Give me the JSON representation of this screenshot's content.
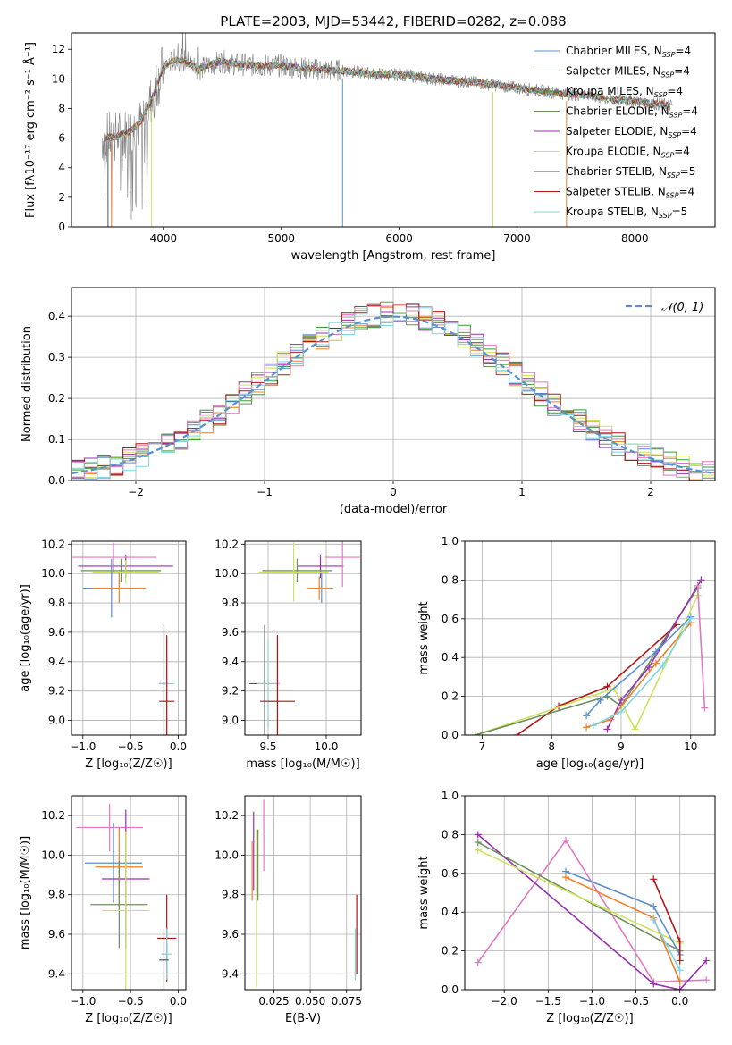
{
  "figure": {
    "title": "PLATE=2003, MJD=53442, FIBERID=0282, z=0.088"
  },
  "chart_data": [
    {
      "id": "spectrum",
      "type": "line",
      "title": "PLATE=2003, MJD=53442, FIBERID=0282, z=0.088",
      "xlabel": "wavelength [Angstrom, rest frame]",
      "ylabel": "Flux [fλ10⁻¹⁷ erg cm⁻² s⁻¹ Å⁻¹]",
      "xlim": [
        3220,
        8680
      ],
      "ylim": [
        0,
        13.1
      ],
      "xticks": [
        4000,
        5000,
        6000,
        7000,
        8000
      ],
      "yticks": [
        0,
        2,
        4,
        6,
        8,
        10,
        12
      ],
      "legend_position": "top-right",
      "data": {
        "wave": [
          3500,
          3600,
          3700,
          3800,
          3900,
          4000,
          4100,
          4200,
          4300,
          4400,
          4500,
          4600,
          4800,
          5000,
          5200,
          5400,
          5600,
          5800,
          6000,
          6200,
          6400,
          6600,
          6800,
          7000,
          7200,
          7400,
          7600,
          7800,
          8000,
          8200,
          8300
        ],
        "flux": [
          6.0,
          6.1,
          6.4,
          7.0,
          8.6,
          10.8,
          11.3,
          11.2,
          10.6,
          11.0,
          11.2,
          11.0,
          10.9,
          10.9,
          10.7,
          10.6,
          10.5,
          10.3,
          10.3,
          10.1,
          9.9,
          9.8,
          9.6,
          9.4,
          9.2,
          9.0,
          8.9,
          8.6,
          8.5,
          8.3,
          8.2
        ]
      },
      "series": [
        {
          "name": "Chabrier MILES, N_SSP=4",
          "color": "#5a8fcf"
        },
        {
          "name": "Salpeter MILES, N_SSP=4",
          "color": "#f07f2a"
        },
        {
          "name": "Kroupa MILES, N_SSP=4",
          "color": "#3a9a3a"
        },
        {
          "name": "Chabrier ELODIE, N_SSP=4",
          "color": "#6b8f5e"
        },
        {
          "name": "Salpeter ELODIE, N_SSP=4",
          "color": "#9a2fb0"
        },
        {
          "name": "Kroupa ELODIE, N_SSP=4",
          "color": "#cde35a"
        },
        {
          "name": "Chabrier STELIB, N_SSP=5",
          "color": "#555555"
        },
        {
          "name": "Salpeter STELIB, N_SSP=4",
          "color": "#b01515"
        },
        {
          "name": "Kroupa STELIB, N_SSP=5",
          "color": "#7fd4e0"
        }
      ]
    },
    {
      "id": "residuals",
      "type": "line",
      "xlabel": "(data-model)/error",
      "ylabel": "Normed distribution",
      "xlim": [
        -2.5,
        2.5
      ],
      "ylim": [
        0,
        0.47
      ],
      "xticks": [
        -2,
        -1,
        0,
        1,
        2
      ],
      "yticks": [
        0.0,
        0.1,
        0.2,
        0.3,
        0.4
      ],
      "legend_position": "top-right",
      "legend": [
        "𝒩(0, 1)"
      ],
      "normal_curve": {
        "mean": 0,
        "sigma": 1,
        "color": "#5a8fcf"
      },
      "histogram_bins": [
        -2.4,
        -2.3,
        -2.2,
        -2.1,
        -2.0,
        -1.9,
        -1.8,
        -1.7,
        -1.6,
        -1.5,
        -1.4,
        -1.3,
        -1.2,
        -1.1,
        -1.0,
        -0.9,
        -0.8,
        -0.7,
        -0.6,
        -0.5,
        -0.4,
        -0.3,
        -0.2,
        -0.1,
        0.0,
        0.1,
        0.2,
        0.3,
        0.4,
        0.5,
        0.6,
        0.7,
        0.8,
        0.9,
        1.0,
        1.1,
        1.2,
        1.3,
        1.4,
        1.5,
        1.6,
        1.7,
        1.8,
        1.9,
        2.0,
        2.1,
        2.2,
        2.3,
        2.4
      ]
    },
    {
      "id": "Z-age",
      "type": "scatter",
      "xlabel": "Z [log₁₀(Z/Z☉)]",
      "ylabel": "age  [log₁₀(age/yr)]",
      "xlim": [
        -1.12,
        0.08
      ],
      "ylim": [
        8.9,
        10.22
      ],
      "xticks": [
        -1.0,
        -0.5,
        0.0
      ],
      "yticks": [
        9.0,
        9.2,
        9.4,
        9.6,
        9.8,
        10.0,
        10.2
      ],
      "points": [
        {
          "x": -0.55,
          "y": 10.05,
          "xerr": 0.5,
          "yerr": 0.08,
          "color": "#9a2fb0"
        },
        {
          "x": -0.68,
          "y": 10.11,
          "xerr": 0.45,
          "yerr": 0.1,
          "color": "#e377c2"
        },
        {
          "x": -0.6,
          "y": 10.02,
          "xerr": 0.42,
          "yerr": 0.08,
          "color": "#6b8f5e"
        },
        {
          "x": -0.55,
          "y": 10.01,
          "xerr": 0.35,
          "yerr": 0.08,
          "color": "#cde35a"
        },
        {
          "x": -0.7,
          "y": 9.9,
          "xerr": 0.3,
          "yerr": 0.2,
          "color": "#5a8fcf"
        },
        {
          "x": -0.62,
          "y": 9.9,
          "xerr": 0.28,
          "yerr": 0.1,
          "color": "#f07f2a"
        },
        {
          "x": -0.15,
          "y": 9.25,
          "xerr": 0.05,
          "yerr": 0.4,
          "color": "#555555"
        },
        {
          "x": -0.12,
          "y": 9.25,
          "xerr": 0.08,
          "yerr": 0.3,
          "color": "#7fd4e0"
        },
        {
          "x": -0.12,
          "y": 9.13,
          "xerr": 0.08,
          "yerr": 0.45,
          "color": "#b01515"
        }
      ]
    },
    {
      "id": "mass-age",
      "type": "scatter",
      "xlabel": "mass [log₁₀(M/M☉)]",
      "ylabel": "",
      "xlim": [
        9.3,
        10.3
      ],
      "ylim": [
        8.9,
        10.22
      ],
      "xticks": [
        9.5,
        10.0
      ],
      "yticks": [
        9.0,
        9.2,
        9.4,
        9.6,
        9.8,
        10.0,
        10.2
      ],
      "points": [
        {
          "x": 9.95,
          "y": 10.05,
          "xerr": 0.2,
          "yerr": 0.08,
          "color": "#9a2fb0"
        },
        {
          "x": 10.14,
          "y": 10.11,
          "xerr": 0.15,
          "yerr": 0.2,
          "color": "#e377c2"
        },
        {
          "x": 9.75,
          "y": 10.02,
          "xerr": 0.3,
          "yerr": 0.08,
          "color": "#6b8f5e"
        },
        {
          "x": 9.72,
          "y": 10.01,
          "xerr": 0.3,
          "yerr": 0.2,
          "color": "#cde35a"
        },
        {
          "x": 9.96,
          "y": 9.9,
          "xerr": 0.1,
          "yerr": 0.1,
          "color": "#5a8fcf"
        },
        {
          "x": 9.94,
          "y": 9.9,
          "xerr": 0.1,
          "yerr": 0.08,
          "color": "#f07f2a"
        },
        {
          "x": 9.47,
          "y": 9.25,
          "xerr": 0.13,
          "yerr": 0.4,
          "color": "#555555"
        },
        {
          "x": 9.5,
          "y": 9.25,
          "xerr": 0.1,
          "yerr": 0.3,
          "color": "#7fd4e0"
        },
        {
          "x": 9.58,
          "y": 9.13,
          "xerr": 0.15,
          "yerr": 0.45,
          "color": "#b01515"
        }
      ]
    },
    {
      "id": "age-weight",
      "type": "line",
      "xlabel": "age  [log₁₀(age/yr)]",
      "ylabel": "mass weight",
      "xlim": [
        6.75,
        10.35
      ],
      "ylim": [
        0,
        1.0
      ],
      "xticks": [
        7,
        8,
        9,
        10
      ],
      "yticks": [
        0.0,
        0.2,
        0.4,
        0.6,
        0.8,
        1.0
      ],
      "series": [
        {
          "color": "#b01515",
          "x": [
            7.5,
            8.1,
            8.8,
            9.8
          ],
          "y": [
            0.0,
            0.15,
            0.25,
            0.57
          ]
        },
        {
          "color": "#cde35a",
          "x": [
            6.9,
            8.9,
            9.2,
            10.1
          ],
          "y": [
            0.0,
            0.24,
            0.03,
            0.72
          ]
        },
        {
          "color": "#6b8f5e",
          "x": [
            6.9,
            8.8,
            9.0,
            10.1
          ],
          "y": [
            0.0,
            0.2,
            0.15,
            0.76
          ]
        },
        {
          "color": "#9a2fb0",
          "x": [
            8.8,
            9.0,
            9.4,
            10.15
          ],
          "y": [
            0.03,
            0.18,
            0.35,
            0.8
          ]
        },
        {
          "color": "#5a8fcf",
          "x": [
            8.5,
            8.7,
            9.5,
            10.0
          ],
          "y": [
            0.1,
            0.18,
            0.43,
            0.61
          ]
        },
        {
          "color": "#f07f2a",
          "x": [
            8.5,
            8.85,
            9.5,
            10.0
          ],
          "y": [
            0.04,
            0.08,
            0.37,
            0.58
          ]
        },
        {
          "color": "#e377c2",
          "x": [
            10.1,
            10.2
          ],
          "y": [
            0.77,
            0.14
          ]
        },
        {
          "color": "#7fd4e0",
          "x": [
            8.6,
            9.0,
            9.6,
            10.0
          ],
          "y": [
            0.05,
            0.12,
            0.36,
            0.6
          ]
        }
      ]
    },
    {
      "id": "Z-mass",
      "type": "scatter",
      "xlabel": "Z [log₁₀(Z/Z☉)]",
      "ylabel": "mass [log₁₀(M/M☉)]",
      "xlim": [
        -1.12,
        0.08
      ],
      "ylim": [
        9.32,
        10.3
      ],
      "xticks": [
        -1.0,
        -0.5,
        0.0
      ],
      "yticks": [
        9.4,
        9.6,
        9.8,
        10.0,
        10.2
      ],
      "points": [
        {
          "x": -0.72,
          "y": 10.14,
          "xerr": 0.35,
          "yerr": 0.12,
          "color": "#e377c2"
        },
        {
          "x": -0.55,
          "y": 9.88,
          "xerr": 0.25,
          "yerr": 0.35,
          "color": "#9a2fb0"
        },
        {
          "x": -0.68,
          "y": 9.96,
          "xerr": 0.3,
          "yerr": 0.2,
          "color": "#5a8fcf"
        },
        {
          "x": -0.62,
          "y": 9.94,
          "xerr": 0.25,
          "yerr": 0.2,
          "color": "#f07f2a"
        },
        {
          "x": -0.62,
          "y": 9.75,
          "xerr": 0.3,
          "yerr": 0.22,
          "color": "#6b8f5e"
        },
        {
          "x": -0.55,
          "y": 9.72,
          "xerr": 0.25,
          "yerr": 0.4,
          "color": "#cde35a"
        },
        {
          "x": -0.12,
          "y": 9.58,
          "xerr": 0.1,
          "yerr": 0.22,
          "color": "#b01515"
        },
        {
          "x": -0.12,
          "y": 9.5,
          "xerr": 0.06,
          "yerr": 0.13,
          "color": "#7fd4e0"
        },
        {
          "x": -0.15,
          "y": 9.47,
          "xerr": 0.05,
          "yerr": 0.15,
          "color": "#555555"
        }
      ]
    },
    {
      "id": "EBV-mass",
      "type": "scatter",
      "xlabel": "E(B-V)",
      "ylabel": "",
      "xlim": [
        0.005,
        0.085
      ],
      "ylim": [
        9.32,
        10.3
      ],
      "xticks": [
        0.025,
        0.05,
        0.075
      ],
      "xtick_labels": [
        "0.025",
        "0.050",
        "0.075"
      ],
      "yticks": [
        9.4,
        9.6,
        9.8,
        10.0,
        10.2
      ],
      "points": [
        {
          "x": 0.01,
          "y": 9.92,
          "yerr": 0.15,
          "color": "#f07f2a"
        },
        {
          "x": 0.011,
          "y": 10.02,
          "yerr": 0.2,
          "color": "#9a2fb0"
        },
        {
          "x": 0.013,
          "y": 9.73,
          "yerr": 0.4,
          "color": "#cde35a"
        },
        {
          "x": 0.014,
          "y": 9.95,
          "yerr": 0.18,
          "color": "#6b8f5e"
        },
        {
          "x": 0.018,
          "y": 10.1,
          "yerr": 0.18,
          "color": "#e377c2"
        },
        {
          "x": 0.082,
          "y": 9.6,
          "yerr": 0.2,
          "color": "#b01515"
        },
        {
          "x": 0.081,
          "y": 9.5,
          "yerr": 0.13,
          "color": "#7fd4e0"
        }
      ]
    },
    {
      "id": "Z-weight",
      "type": "line",
      "xlabel": "Z [log₁₀(Z/Z☉)]",
      "ylabel": "mass weight",
      "xlim": [
        -2.45,
        0.4
      ],
      "ylim": [
        0,
        1.0
      ],
      "xticks": [
        -2.0,
        -1.5,
        -1.0,
        -0.5,
        0.0
      ],
      "yticks": [
        0.0,
        0.2,
        0.4,
        0.6,
        0.8,
        1.0
      ],
      "series": [
        {
          "color": "#e377c2",
          "x": [
            -2.3,
            -1.3,
            -0.3,
            0.3
          ],
          "y": [
            0.14,
            0.77,
            0.04,
            0.05
          ]
        },
        {
          "color": "#9a2fb0",
          "x": [
            -2.3,
            -0.3,
            0.0,
            0.3
          ],
          "y": [
            0.8,
            0.03,
            0.0,
            0.15
          ]
        },
        {
          "color": "#6b8f5e",
          "x": [
            -2.3,
            0.0
          ],
          "y": [
            0.76,
            0.2
          ]
        },
        {
          "color": "#cde35a",
          "x": [
            -2.3,
            0.0
          ],
          "y": [
            0.72,
            0.24
          ]
        },
        {
          "color": "#5a8fcf",
          "x": [
            -1.3,
            -0.3,
            0.0
          ],
          "y": [
            0.61,
            0.43,
            0.18
          ]
        },
        {
          "color": "#f07f2a",
          "x": [
            -1.3,
            -0.3,
            0.0
          ],
          "y": [
            0.58,
            0.37,
            0.04
          ]
        },
        {
          "color": "#b01515",
          "x": [
            -0.3,
            0.0,
            0.0
          ],
          "y": [
            0.57,
            0.25,
            0.15
          ]
        },
        {
          "color": "#7fd4e0",
          "x": [
            -0.3,
            0.0
          ],
          "y": [
            0.36,
            0.1
          ]
        }
      ]
    }
  ]
}
